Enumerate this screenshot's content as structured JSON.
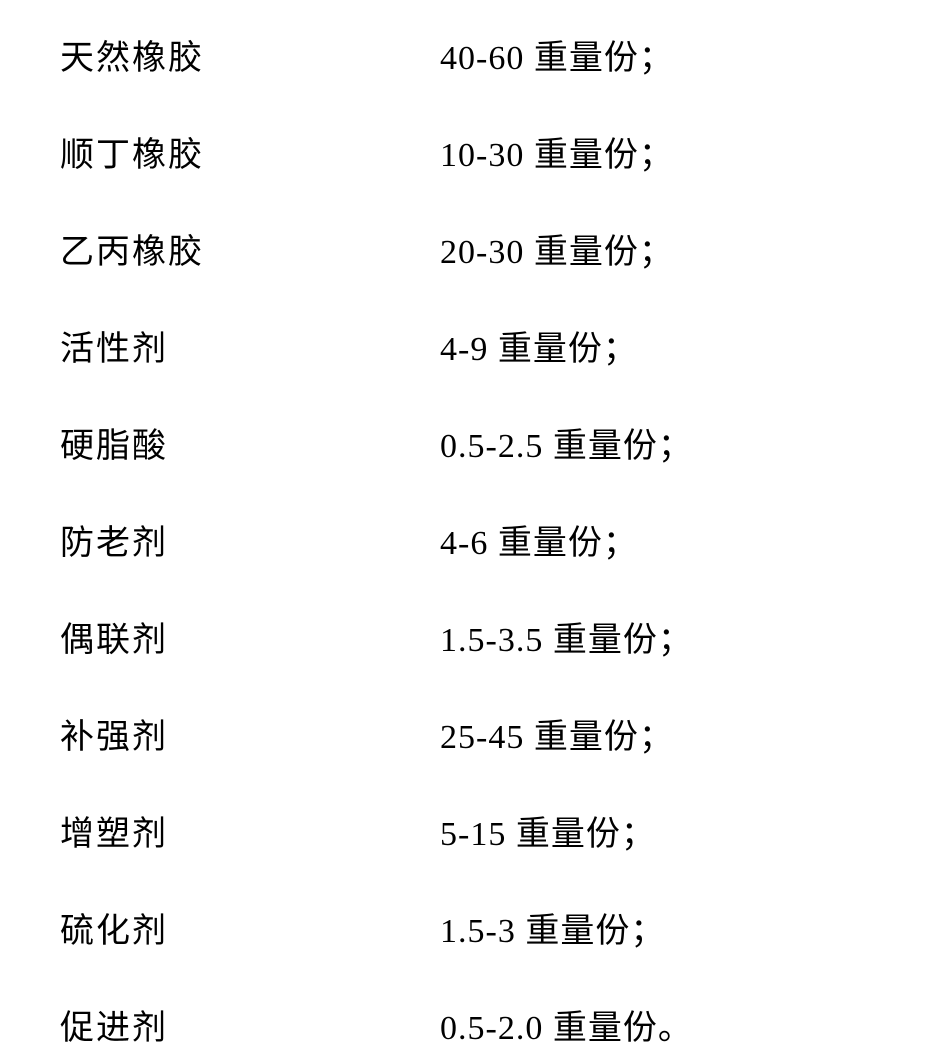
{
  "composition": {
    "type": "table",
    "background_color": "#ffffff",
    "text_color": "#000000",
    "font_family": "SimSun",
    "font_size": 34,
    "row_spacing": 48,
    "columns": {
      "ingredient_width": 380,
      "count": 2
    },
    "rows": [
      {
        "ingredient": "天然橡胶",
        "amount": "40-60 重量份；"
      },
      {
        "ingredient": "顺丁橡胶",
        "amount": "10-30 重量份；"
      },
      {
        "ingredient": "乙丙橡胶",
        "amount": "20-30 重量份；"
      },
      {
        "ingredient": "活性剂",
        "amount": "4-9 重量份；"
      },
      {
        "ingredient": "硬脂酸",
        "amount": "0.5-2.5 重量份；"
      },
      {
        "ingredient": "防老剂",
        "amount": "4-6 重量份；"
      },
      {
        "ingredient": "偶联剂",
        "amount": "1.5-3.5 重量份；"
      },
      {
        "ingredient": "补强剂",
        "amount": "25-45 重量份；"
      },
      {
        "ingredient": "增塑剂",
        "amount": "5-15 重量份；"
      },
      {
        "ingredient": "硫化剂",
        "amount": "1.5-3 重量份；"
      },
      {
        "ingredient": "促进剂",
        "amount": "0.5-2.0 重量份。"
      }
    ]
  }
}
